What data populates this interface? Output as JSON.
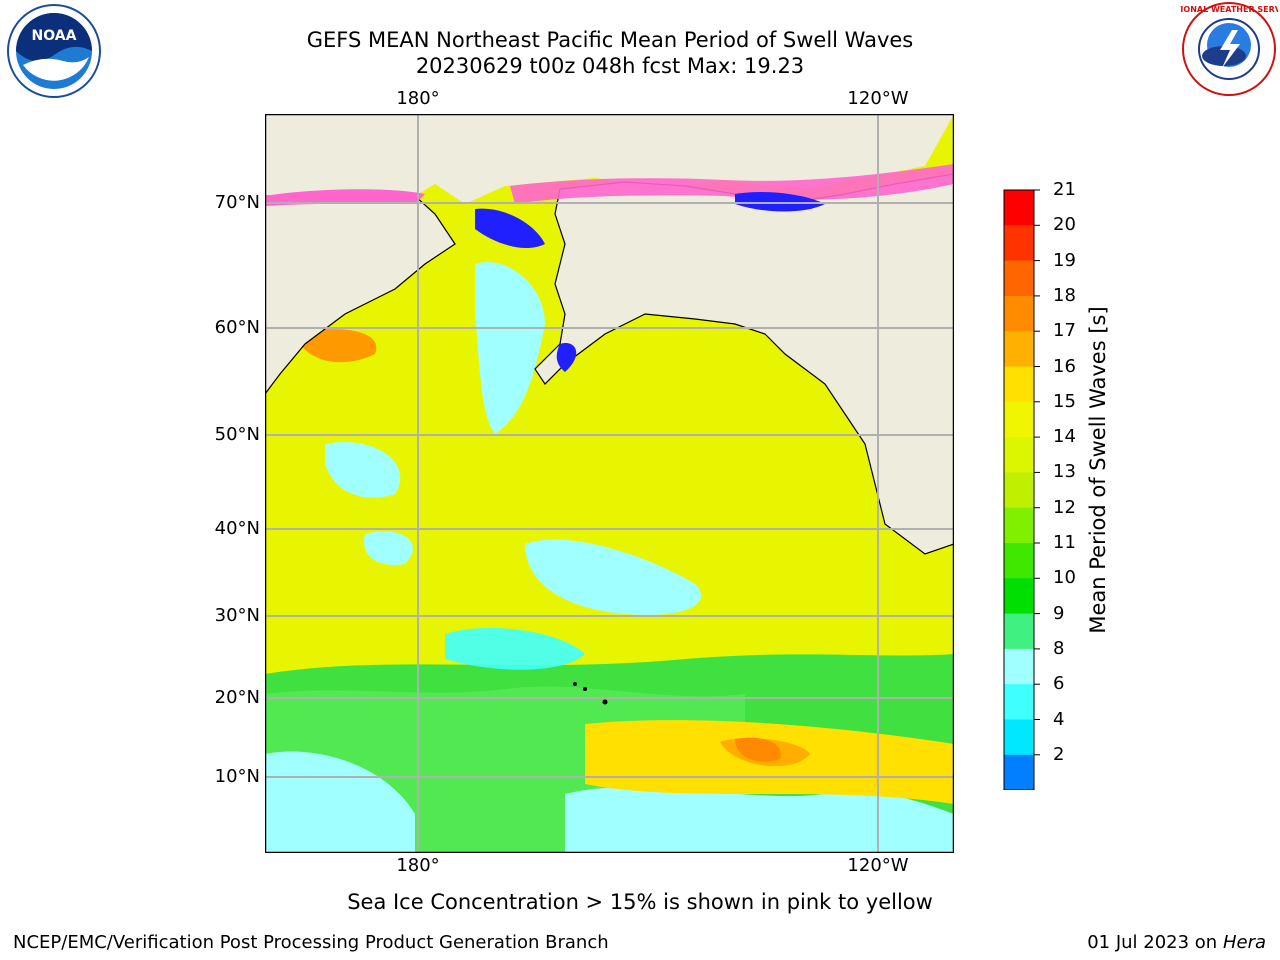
{
  "header": {
    "title_line1": "GEFS MEAN Northeast Pacific Mean Period of Swell Waves",
    "title_line2": "20230629 t00z 048h fcst   Max: 19.23"
  },
  "logos": {
    "left": "NOAA",
    "right": "NATIONAL WEATHER SERVICE"
  },
  "map": {
    "lon_labels_top": [
      "180°",
      "120°W"
    ],
    "lon_labels_bottom": [
      "180°",
      "120°W"
    ],
    "lat_labels": [
      "70°N",
      "60°N",
      "50°N",
      "40°N",
      "30°N",
      "20°N",
      "10°N"
    ],
    "land_color": "#eeecdc",
    "ocean_base_color": "#e8f500",
    "gridline_color": "#b0b0b0"
  },
  "colorbar": {
    "label": "Mean Period of Swell Waves [s]",
    "ticks": [
      "21",
      "20",
      "19",
      "18",
      "17",
      "16",
      "15",
      "14",
      "13",
      "12",
      "11",
      "10",
      "9",
      "8",
      "6",
      "4",
      "2"
    ],
    "colors_top_to_bottom": [
      "#ff0000",
      "#ff3300",
      "#ff6600",
      "#ff8c00",
      "#ffb000",
      "#ffe000",
      "#f0f500",
      "#dcf500",
      "#c0f000",
      "#80f000",
      "#40e800",
      "#00e000",
      "#40f080",
      "#a0ffff",
      "#40ffff",
      "#00e8ff",
      "#0080ff"
    ],
    "extend_color": "#0000ff"
  },
  "note": "Sea Ice Concentration > 15% is shown in pink to yellow",
  "footer": {
    "left": "NCEP/EMC/Verification Post Processing Product Generation Branch",
    "right_date": "01 Jul 2023 on",
    "right_host": "Hera"
  }
}
